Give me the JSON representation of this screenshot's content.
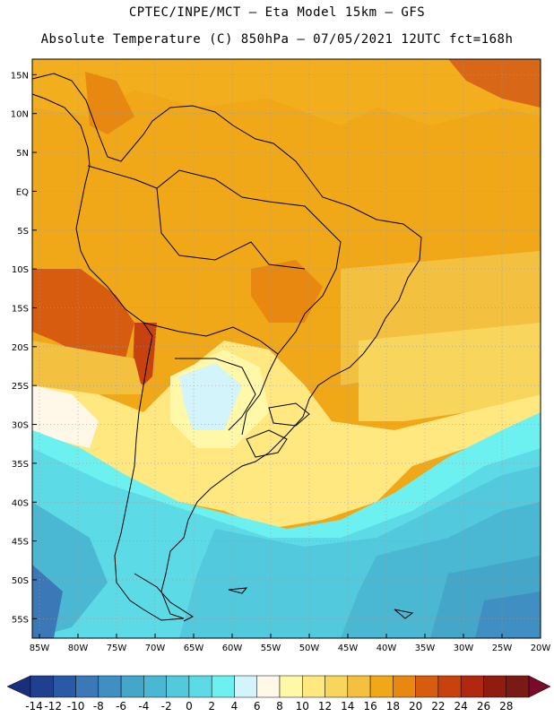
{
  "title_line1": "CPTEC/INPE/MCT –  Eta Model 15km – GFS",
  "title_line2": "Absolute Temperature (C) 850hPa – 07/05/2021 12UTC fct=168h",
  "lat_labels": [
    "15N",
    "10N",
    "5N",
    "EQ",
    "5S",
    "10S",
    "15S",
    "20S",
    "25S",
    "30S",
    "35S",
    "40S",
    "45S",
    "50S",
    "55S"
  ],
  "lon_labels": [
    "85W",
    "80W",
    "75W",
    "70W",
    "65W",
    "60W",
    "55W",
    "50W",
    "45W",
    "40W",
    "35W",
    "30W",
    "25W",
    "20W"
  ],
  "colorbar": {
    "labels": [
      "-14",
      "-12",
      "-10",
      "-8",
      "-6",
      "-4",
      "-2",
      "0",
      "2",
      "4",
      "6",
      "8",
      "10",
      "12",
      "14",
      "16",
      "18",
      "20",
      "22",
      "24",
      "26",
      "28"
    ],
    "colors": [
      "#1f3f8f",
      "#285aa8",
      "#3a78b8",
      "#3f8fc2",
      "#44a6c8",
      "#4ab8d2",
      "#52c9dc",
      "#5cdbe6",
      "#6cf0f0",
      "#d2f4fa",
      "#fff8e8",
      "#fff8a8",
      "#ffe880",
      "#f8d65c",
      "#f4c040",
      "#f0a818",
      "#e88810",
      "#d85c10",
      "#c84210",
      "#b02810",
      "#901c10",
      "#7a1a14"
    ],
    "low_color": "#1a2f7a",
    "high_color": "#7a0a2a"
  }
}
